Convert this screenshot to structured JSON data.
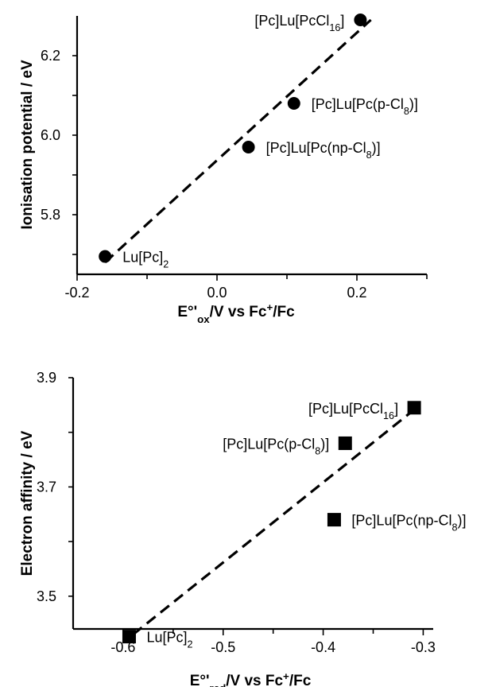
{
  "chart_data": [
    {
      "type": "scatter",
      "title": "",
      "xlabel_parts": [
        [
          "E°'",
          ""
        ],
        [
          "ox",
          "sub"
        ],
        [
          "/V  vs  Fc",
          ""
        ],
        [
          "+",
          "sup"
        ],
        [
          "/Fc",
          ""
        ]
      ],
      "ylabel": "Ionisation potential / eV",
      "xlim": [
        -0.2,
        0.3
      ],
      "ylim": [
        5.65,
        6.3
      ],
      "xticks": [
        -0.2,
        -0.1,
        0.0,
        0.1,
        0.2,
        0.3
      ],
      "xtick_labels": [
        "-0.2",
        "",
        "0.0",
        "",
        "0.2",
        ""
      ],
      "yticks": [
        5.7,
        5.8,
        5.9,
        6.0,
        6.1,
        6.2
      ],
      "ytick_labels": [
        "",
        "5.8",
        "",
        "6.0",
        "",
        "6.2"
      ],
      "marker": "circle",
      "points": [
        {
          "x": -0.16,
          "y": 5.695,
          "label_parts": [
            [
              "Lu[Pc]",
              ""
            ],
            [
              "2",
              "sub"
            ]
          ],
          "label_side": "right"
        },
        {
          "x": 0.045,
          "y": 5.97,
          "label_parts": [
            [
              "[Pc]Lu[Pc(np-Cl",
              ""
            ],
            [
              "8",
              "sub"
            ],
            [
              ")]",
              ""
            ]
          ],
          "label_side": "right"
        },
        {
          "x": 0.11,
          "y": 6.08,
          "label_parts": [
            [
              "[Pc]Lu[Pc(p-Cl",
              ""
            ],
            [
              "8",
              "sub"
            ],
            [
              ")]",
              ""
            ]
          ],
          "label_side": "right"
        },
        {
          "x": 0.205,
          "y": 6.29,
          "label_parts": [
            [
              "[Pc]Lu[PcCl",
              ""
            ],
            [
              "16",
              "sub"
            ],
            [
              "]",
              ""
            ]
          ],
          "label_side": "left"
        }
      ],
      "trendline": {
        "x": [
          -0.16,
          0.22
        ],
        "y": [
          5.68,
          6.29
        ]
      }
    },
    {
      "type": "scatter",
      "title": "",
      "xlabel_parts": [
        [
          "E°'",
          ""
        ],
        [
          "red",
          "sub"
        ],
        [
          "/V  vs  Fc",
          ""
        ],
        [
          "+",
          "sup"
        ],
        [
          "/Fc",
          ""
        ]
      ],
      "ylabel": "Electron affinity / eV",
      "xlim": [
        -0.65,
        -0.29
      ],
      "ylim": [
        3.44,
        3.9
      ],
      "xticks": [
        -0.6,
        -0.55,
        -0.5,
        -0.45,
        -0.4,
        -0.35,
        -0.3
      ],
      "xtick_labels": [
        "-0.6",
        "",
        "-0.5",
        "",
        "-0.4",
        "",
        "-0.3"
      ],
      "yticks": [
        3.5,
        3.6,
        3.7,
        3.8,
        3.9
      ],
      "ytick_labels": [
        "3.5",
        "",
        "3.7",
        "",
        "3.9"
      ],
      "marker": "square",
      "points": [
        {
          "x": -0.594,
          "y": 3.426,
          "label_parts": [
            [
              "Lu[Pc]",
              ""
            ],
            [
              "2",
              "sub"
            ]
          ],
          "label_side": "right"
        },
        {
          "x": -0.389,
          "y": 3.64,
          "label_parts": [
            [
              "[Pc]Lu[Pc(np-Cl",
              ""
            ],
            [
              "8",
              "sub"
            ],
            [
              ")]",
              ""
            ]
          ],
          "label_side": "right"
        },
        {
          "x": -0.378,
          "y": 3.78,
          "label_parts": [
            [
              "[Pc]Lu[Pc(p-Cl",
              ""
            ],
            [
              "8",
              "sub"
            ],
            [
              ")]",
              ""
            ]
          ],
          "label_side": "left"
        },
        {
          "x": -0.309,
          "y": 3.845,
          "label_parts": [
            [
              "[Pc]Lu[PcCl",
              ""
            ],
            [
              "16",
              "sub"
            ],
            [
              "]",
              ""
            ]
          ],
          "label_side": "left"
        }
      ],
      "trendline": {
        "x": [
          -0.59,
          -0.31
        ],
        "y": [
          3.43,
          3.84
        ]
      }
    }
  ]
}
